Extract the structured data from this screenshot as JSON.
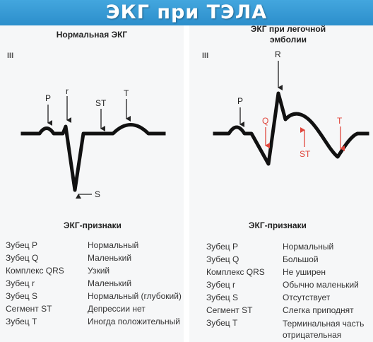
{
  "title": "ЭКГ при ТЭЛА",
  "left": {
    "heading": "Нормальная ЭКГ",
    "lead": "III",
    "wave_labels": {
      "p": "P",
      "r": "r",
      "st": "ST",
      "t": "T",
      "s": "S"
    },
    "features_heading": "ЭКГ-признаки",
    "rows": [
      {
        "label": "Зубец P",
        "value": "Нормальный"
      },
      {
        "label": "Зубец Q",
        "value": "Маленький"
      },
      {
        "label": "Комплекс QRS",
        "value": "Узкий"
      },
      {
        "label": "Зубец r",
        "value": "Маленький"
      },
      {
        "label": "Зубец S",
        "value": "Нормальный (глубокий)"
      },
      {
        "label": "Сегмент ST",
        "value": "Депрессии нет"
      },
      {
        "label": "Зубец T",
        "value": "Иногда положительный"
      }
    ]
  },
  "right": {
    "heading_line1": "ЭКГ при легочной",
    "heading_line2": "эмболии",
    "lead": "III",
    "wave_labels": {
      "p": "P",
      "r": "R",
      "q": "Q",
      "st": "ST",
      "t": "T"
    },
    "features_heading": "ЭКГ-признаки",
    "rows": [
      {
        "label": "Зубец P",
        "value": "Нормальный"
      },
      {
        "label": "Зубец Q",
        "value": "Большой"
      },
      {
        "label": "Комплекс QRS",
        "value": "Не уширен"
      },
      {
        "label": "Зубец r",
        "value": "Обычно маленький"
      },
      {
        "label": "Зубец S",
        "value": "Отсутствует"
      },
      {
        "label": "Сегмент ST",
        "value": "Слегка приподнят"
      },
      {
        "label": "Зубец T",
        "value": "Терминальная часть отрицательная"
      }
    ]
  },
  "colors": {
    "banner": "#2e90cc",
    "panel": "#f6f7f8",
    "trace": "#111111",
    "annotation_red": "#e0463c"
  }
}
